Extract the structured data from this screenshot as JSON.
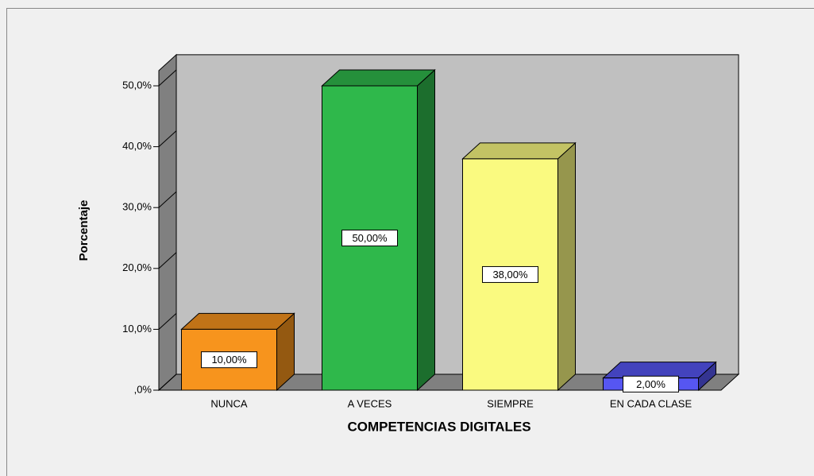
{
  "chart_data": {
    "type": "bar3d",
    "x_label": "COMPETENCIAS DIGITALES",
    "y_label": "Porcentaje",
    "categories": [
      "NUNCA",
      "A VECES",
      "SIEMPRE",
      "EN CADA CLASE"
    ],
    "values": [
      10,
      50,
      38,
      2
    ],
    "value_labels": [
      "10,00%",
      "50,00%",
      "38,00%",
      "2,00%"
    ],
    "colors": [
      "#f7941d",
      "#2fb84b",
      "#fafa80",
      "#5656f2"
    ],
    "ylim": [
      0,
      52.5
    ],
    "yticks": [
      {
        "value": 0,
        "label": ",0%"
      },
      {
        "value": 10,
        "label": "10,0%"
      },
      {
        "value": 20,
        "label": "20,0%"
      },
      {
        "value": 30,
        "label": "30,0%"
      },
      {
        "value": 40,
        "label": "40,0%"
      },
      {
        "value": 50,
        "label": "50,0%"
      }
    ]
  }
}
